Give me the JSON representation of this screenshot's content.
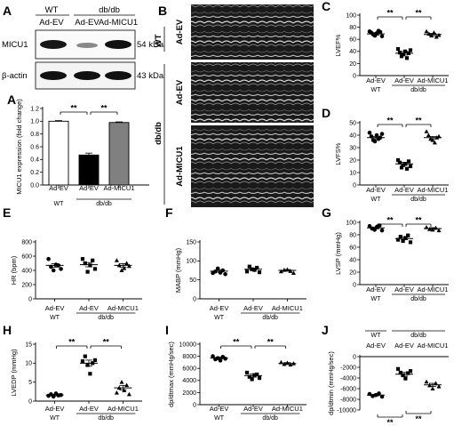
{
  "panels": {
    "a": "A",
    "b": "B",
    "c": "C",
    "d": "D",
    "e": "E",
    "f": "F",
    "g": "G",
    "h": "H",
    "i": "I",
    "j": "J"
  },
  "blot": {
    "wt": "WT",
    "dbdb": "db/db",
    "lane_labels": [
      "Ad-EV",
      "Ad-EV",
      "Ad-MICU1"
    ],
    "rows": [
      {
        "protein": "MICU1",
        "size": "54 kDa"
      },
      {
        "protein": "β-actin",
        "size": "43 kDa"
      }
    ]
  },
  "echo": {
    "wt": "WT",
    "dbdb": "db/db",
    "rows": [
      "Ad-EV",
      "Ad-EV",
      "Ad-MICU1"
    ]
  },
  "groups": {
    "categories": [
      "Ad-EV",
      "Ad-EV",
      "Ad-MICU1"
    ],
    "wt": "WT",
    "dbdb": "db/db"
  },
  "sig_label": "**",
  "chart_data": [
    {
      "panel": "A",
      "type": "bar",
      "ylabel": "MICU1 expression (fold change)",
      "ylim": [
        0,
        1.2
      ],
      "yticks": [
        "0.0",
        "0.2",
        "0.4",
        "0.6",
        "0.8",
        "1.0",
        "1.2"
      ],
      "tick_values": [
        0,
        0.2,
        0.4,
        0.6,
        0.8,
        1.0,
        1.2
      ],
      "values": [
        1.0,
        0.47,
        0.98
      ],
      "errors": [
        0.01,
        0.03,
        0.01
      ],
      "colors": [
        "#ffffff",
        "#000000",
        "#808080"
      ],
      "sig": [
        [
          0,
          1
        ],
        [
          1,
          2
        ]
      ]
    },
    {
      "panel": "C",
      "type": "scatter",
      "ylabel": "LVEF%",
      "ylim": [
        0,
        100
      ],
      "yticks": [
        "0",
        "20",
        "40",
        "60",
        "80",
        "100"
      ],
      "tick_values": [
        0,
        20,
        40,
        60,
        80,
        100
      ],
      "means": [
        69,
        37,
        68
      ],
      "sems": [
        2,
        3,
        2
      ],
      "points": [
        [
          73,
          71,
          68,
          66,
          70,
          74,
          72,
          65
        ],
        [
          44,
          38,
          32,
          35,
          40,
          29,
          37,
          42
        ],
        [
          73,
          69,
          66,
          71,
          64,
          67
        ]
      ],
      "markers": [
        "circle",
        "square",
        "triangle"
      ],
      "sig": [
        [
          0,
          1
        ],
        [
          1,
          2
        ]
      ]
    },
    {
      "panel": "D",
      "type": "scatter",
      "ylabel": "LVFS%",
      "ylim": [
        0,
        50
      ],
      "yticks": [
        "0",
        "10",
        "20",
        "30",
        "40",
        "50"
      ],
      "tick_values": [
        0,
        10,
        20,
        30,
        40,
        50
      ],
      "means": [
        38,
        17,
        38
      ],
      "sems": [
        1,
        1.2,
        1
      ],
      "points": [
        [
          42,
          39,
          36,
          35,
          40,
          37,
          38,
          41
        ],
        [
          20,
          18,
          14,
          16,
          17,
          13,
          19,
          15
        ],
        [
          43,
          40,
          37,
          36,
          34,
          38,
          39
        ]
      ],
      "markers": [
        "circle",
        "square",
        "triangle"
      ],
      "sig": [
        [
          0,
          1
        ],
        [
          1,
          2
        ]
      ]
    },
    {
      "panel": "E",
      "type": "scatter",
      "ylabel": "HR (bpm)",
      "ylim": [
        0,
        800
      ],
      "yticks": [
        "0",
        "200",
        "400",
        "600",
        "800"
      ],
      "tick_values": [
        0,
        200,
        400,
        600,
        800
      ],
      "means": [
        470,
        480,
        470
      ],
      "sems": [
        25,
        30,
        25
      ],
      "points": [
        [
          560,
          450,
          400,
          480,
          470,
          420
        ],
        [
          560,
          500,
          380,
          470,
          540,
          420
        ],
        [
          540,
          470,
          400,
          430,
          500,
          460
        ]
      ],
      "markers": [
        "circle",
        "square",
        "triangle"
      ],
      "sig": []
    },
    {
      "panel": "F",
      "type": "scatter",
      "ylabel": "MABP (mmHg)",
      "ylim": [
        0,
        150
      ],
      "yticks": [
        "0",
        "50",
        "100",
        "150"
      ],
      "tick_values": [
        0,
        50,
        100,
        150
      ],
      "means": [
        73,
        78,
        75
      ],
      "sems": [
        3,
        3,
        2
      ],
      "points": [
        [
          68,
          72,
          80,
          69,
          75,
          65
        ],
        [
          72,
          85,
          78,
          76,
          82,
          70
        ],
        [
          72,
          76,
          77,
          73,
          68
        ]
      ],
      "markers": [
        "circle",
        "square",
        "triangle"
      ],
      "sig": []
    },
    {
      "panel": "G",
      "type": "scatter",
      "ylabel": "LVSP (mmHg)",
      "ylim": [
        0,
        100
      ],
      "yticks": [
        "0",
        "20",
        "40",
        "60",
        "80",
        "100"
      ],
      "tick_values": [
        0,
        20,
        40,
        60,
        80,
        100
      ],
      "means": [
        91,
        74,
        90
      ],
      "sems": [
        1.5,
        2,
        1.5
      ],
      "points": [
        [
          94,
          90,
          88,
          93,
          95,
          87
        ],
        [
          72,
          77,
          70,
          75,
          79,
          68
        ],
        [
          92,
          89,
          88,
          91,
          87
        ]
      ],
      "markers": [
        "circle",
        "square",
        "triangle"
      ],
      "sig": [
        [
          0,
          1
        ],
        [
          1,
          2
        ]
      ]
    },
    {
      "panel": "H",
      "type": "scatter",
      "ylabel": "LVEDP (mmHg)",
      "ylim": [
        0,
        15
      ],
      "yticks": [
        "0",
        "5",
        "10",
        "15"
      ],
      "tick_values": [
        0,
        5,
        10,
        15
      ],
      "means": [
        1.6,
        10,
        3.5
      ],
      "sems": [
        0.2,
        0.8,
        0.6
      ],
      "points": [
        [
          1.4,
          1.8,
          1.2,
          2.0,
          1.5,
          1.6
        ],
        [
          10.5,
          11.8,
          9.5,
          7.2,
          10,
          10.8
        ],
        [
          2.2,
          3.5,
          5,
          2.8,
          4.2,
          1.8
        ]
      ],
      "markers": [
        "circle",
        "square",
        "triangle"
      ],
      "sig": [
        [
          0,
          1
        ],
        [
          1,
          2
        ]
      ]
    },
    {
      "panel": "I",
      "type": "scatter",
      "ylabel": "dp/dtmax (mmHg/sec)",
      "ylim": [
        0,
        10000
      ],
      "yticks": [
        "0",
        "2000",
        "4000",
        "6000",
        "8000",
        "10000"
      ],
      "tick_values": [
        0,
        2000,
        4000,
        6000,
        8000,
        10000
      ],
      "means": [
        7700,
        4800,
        6800
      ],
      "sems": [
        150,
        250,
        150
      ],
      "points": [
        [
          8000,
          7500,
          7700,
          7300,
          7900,
          7600
        ],
        [
          5300,
          4600,
          4200,
          4900,
          5000,
          4400
        ],
        [
          7000,
          6700,
          6900,
          6600,
          6800
        ]
      ],
      "markers": [
        "circle",
        "square",
        "triangle"
      ],
      "sig": [
        [
          0,
          1
        ],
        [
          1,
          2
        ]
      ]
    },
    {
      "panel": "J",
      "type": "scatter",
      "ylabel": "dp/dtmin (mmHg/sec)",
      "ylim": [
        -10000,
        0
      ],
      "yticks": [
        "0",
        "-2000",
        "-4000",
        "-6000",
        "-8000",
        "-10000"
      ],
      "tick_values": [
        0,
        -2000,
        -4000,
        -6000,
        -8000,
        -10000
      ],
      "means": [
        -7200,
        -3300,
        -5300
      ],
      "sems": [
        150,
        350,
        300
      ],
      "points": [
        [
          -7000,
          -7400,
          -7200,
          -6900,
          -7500
        ],
        [
          -2300,
          -3000,
          -3500,
          -4100,
          -3100,
          -2700
        ],
        [
          -4700,
          -5400,
          -6000,
          -5000,
          -5600
        ]
      ],
      "markers": [
        "circle",
        "square",
        "triangle"
      ],
      "sig": [
        [
          0,
          1
        ],
        [
          1,
          2
        ]
      ]
    }
  ]
}
